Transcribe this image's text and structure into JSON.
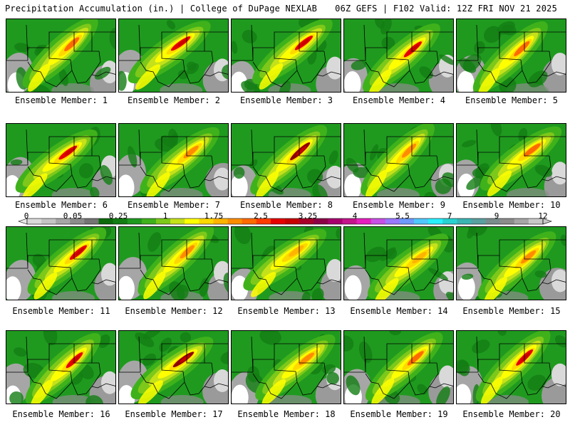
{
  "header": {
    "title_left": "Precipitation Accumulation (in.) | College of DuPage NEXLAB",
    "title_right": "06Z GEFS | F102 Valid: 12Z FRI NOV 21 2025"
  },
  "panels": [
    {
      "label": "Ensemble Member: 1",
      "peak": 2.0
    },
    {
      "label": "Ensemble Member: 2",
      "peak": 2.9
    },
    {
      "label": "Ensemble Member: 3",
      "peak": 2.6
    },
    {
      "label": "Ensemble Member: 4",
      "peak": 2.8
    },
    {
      "label": "Ensemble Member: 5",
      "peak": 2.3
    },
    {
      "label": "Ensemble Member: 6",
      "peak": 2.6
    },
    {
      "label": "Ensemble Member: 7",
      "peak": 1.8
    },
    {
      "label": "Ensemble Member: 8",
      "peak": 3.5
    },
    {
      "label": "Ensemble Member: 9",
      "peak": 1.9
    },
    {
      "label": "Ensemble Member: 10",
      "peak": 2.2
    },
    {
      "label": "Ensemble Member: 11",
      "peak": 2.5
    },
    {
      "label": "Ensemble Member: 12",
      "peak": 1.8
    },
    {
      "label": "Ensemble Member: 13",
      "peak": 1.6
    },
    {
      "label": "Ensemble Member: 14",
      "peak": 1.5
    },
    {
      "label": "Ensemble Member: 15",
      "peak": 1.9
    },
    {
      "label": "Ensemble Member: 16",
      "peak": 2.6
    },
    {
      "label": "Ensemble Member: 17",
      "peak": 3.3
    },
    {
      "label": "Ensemble Member: 18",
      "peak": 1.8
    },
    {
      "label": "Ensemble Member: 19",
      "peak": 2.3
    },
    {
      "label": "Ensemble Member: 20",
      "peak": 2.7
    }
  ],
  "colorbar": {
    "labels": [
      "0",
      "0.05",
      "0.25",
      "1",
      "1.75",
      "2.5",
      "3.25",
      "4",
      "5.5",
      "7",
      "9",
      "12"
    ],
    "colors": [
      "#d9d9d9",
      "#c4c4c4",
      "#a6a6a6",
      "#8c8c8c",
      "#747474",
      "#0c6a0c",
      "#137d13",
      "#1f9a1f",
      "#3fb21b",
      "#7dc81a",
      "#c4e11a",
      "#ffff00",
      "#ffd800",
      "#ffb400",
      "#ff8c00",
      "#ff6a00",
      "#ff3c00",
      "#e60000",
      "#c80000",
      "#a8002a",
      "#8c0046",
      "#a8006e",
      "#c4148c",
      "#e61ebe",
      "#c850e6",
      "#9a78ff",
      "#6e9aff",
      "#50c8ff",
      "#28f0ff",
      "#28d2d2",
      "#3cb4b4",
      "#5aa0a0",
      "#7a8c8c",
      "#8c8c8c",
      "#a6a6a6",
      "#c8c8c8"
    ]
  }
}
